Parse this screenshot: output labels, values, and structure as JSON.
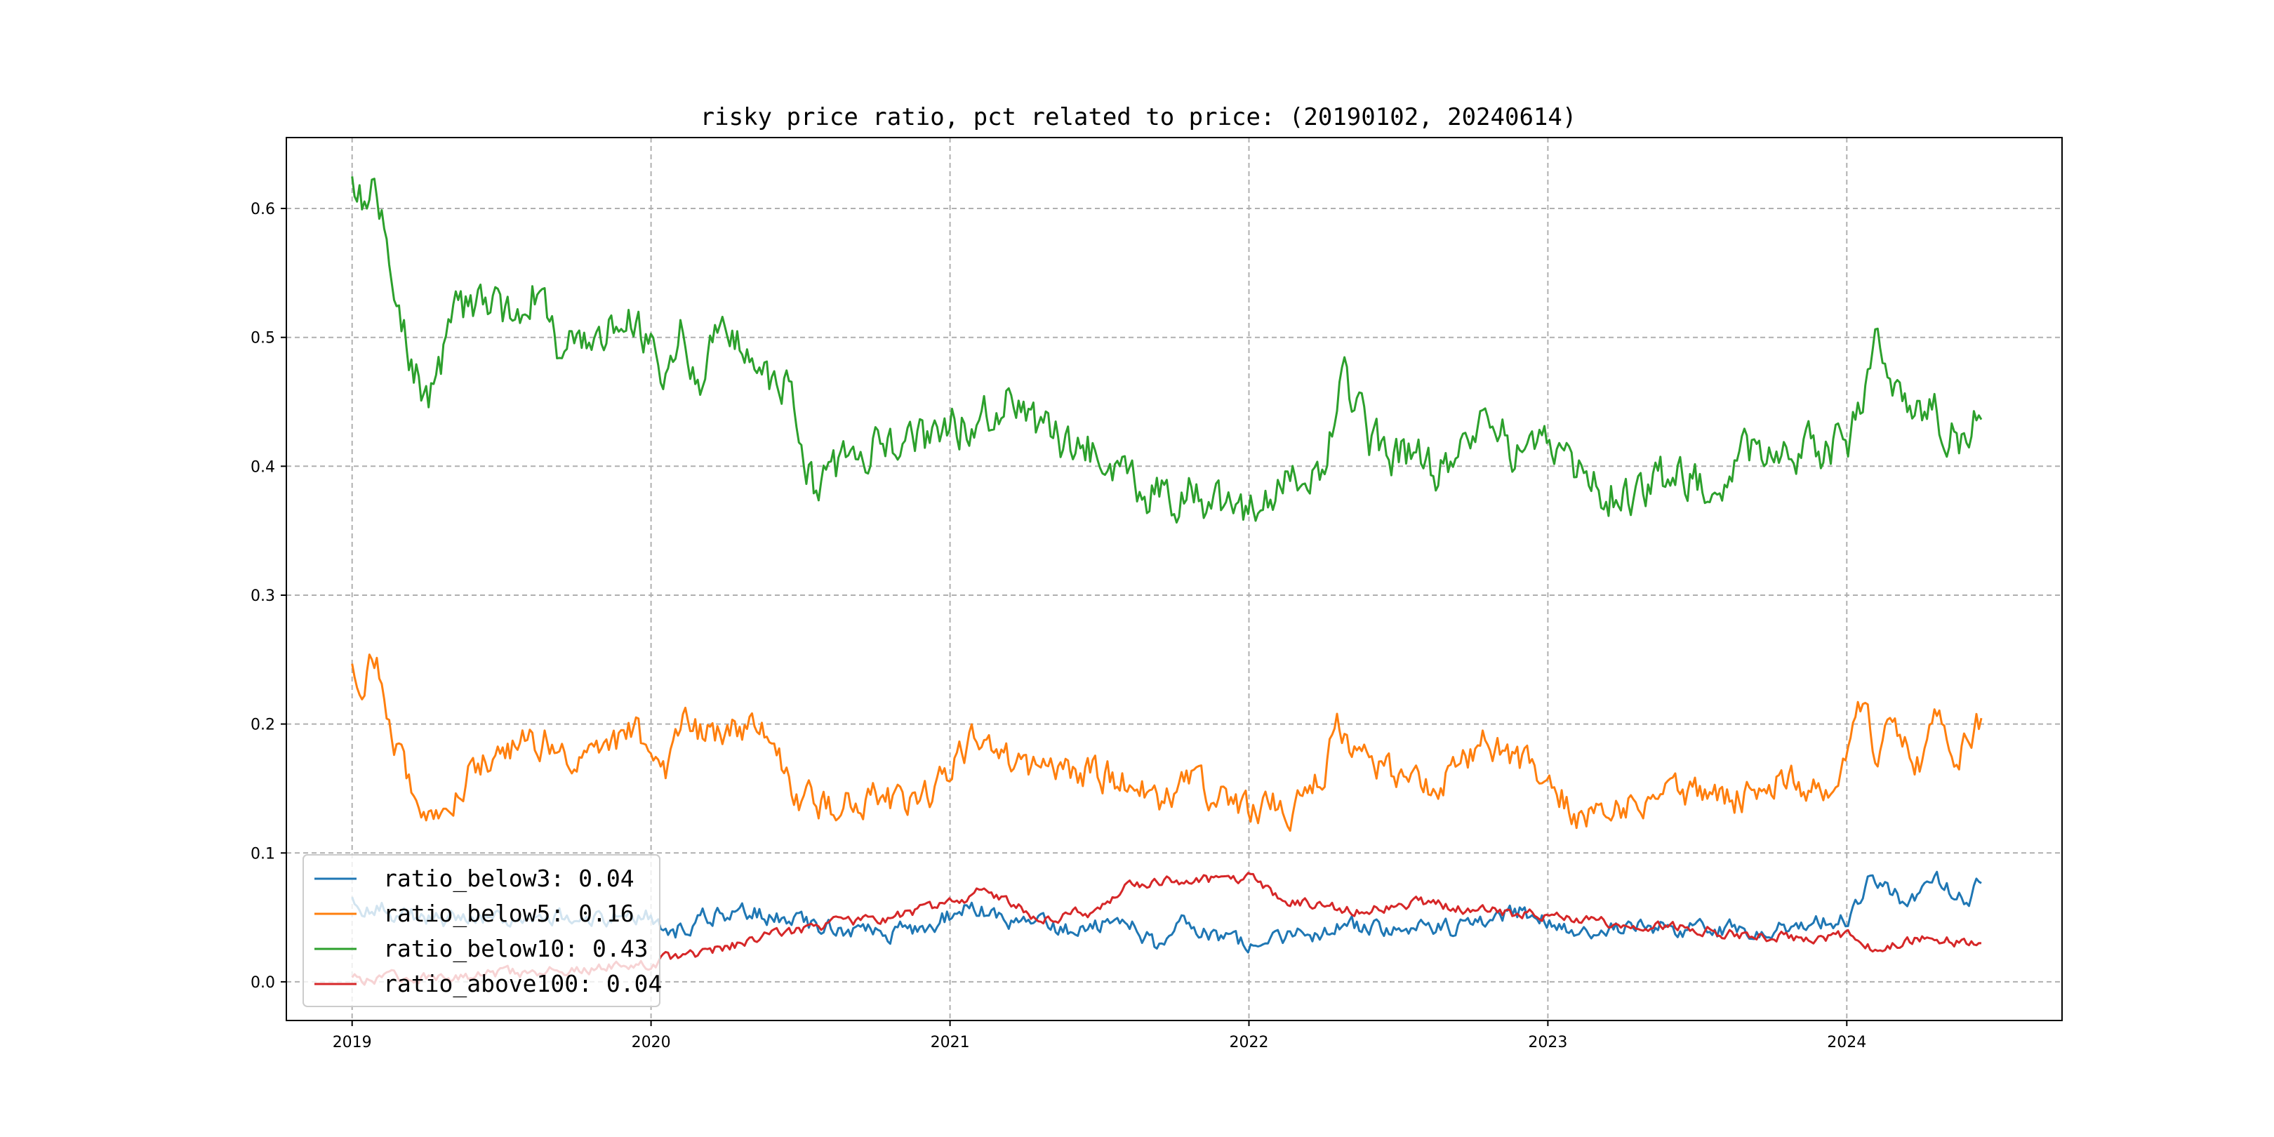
{
  "chart_data": {
    "type": "line",
    "title": "risky price ratio, pct related to price: (20190102, 20240614)",
    "xlabel": "",
    "ylabel": "",
    "x_range": [
      2018.78,
      2024.72
    ],
    "ylim": [
      -0.03,
      0.655
    ],
    "grid": true,
    "x_ticks": [
      {
        "value": 2019,
        "label": "2019"
      },
      {
        "value": 2020,
        "label": "2020"
      },
      {
        "value": 2021,
        "label": "2021"
      },
      {
        "value": 2022,
        "label": "2022"
      },
      {
        "value": 2023,
        "label": "2023"
      },
      {
        "value": 2024,
        "label": "2024"
      }
    ],
    "y_ticks": [
      {
        "value": 0.0,
        "label": "0.0"
      },
      {
        "value": 0.1,
        "label": "0.1"
      },
      {
        "value": 0.2,
        "label": "0.2"
      },
      {
        "value": 0.3,
        "label": "0.3"
      },
      {
        "value": 0.4,
        "label": "0.4"
      },
      {
        "value": 0.5,
        "label": "0.5"
      },
      {
        "value": 0.6,
        "label": "0.6"
      }
    ],
    "legend_position": "lower-left",
    "series": [
      {
        "name": "ratio_below3",
        "legend_label": "ratio_below3: 0.04",
        "color": "#1f77b4",
        "x": [
          2019.0,
          2019.1,
          2019.25,
          2019.4,
          2019.6,
          2019.8,
          2020.0,
          2020.08,
          2020.2,
          2020.35,
          2020.5,
          2020.7,
          2020.9,
          2021.05,
          2021.2,
          2021.4,
          2021.6,
          2021.7,
          2021.8,
          2021.9,
          2022.0,
          2022.15,
          2022.3,
          2022.5,
          2022.7,
          2022.9,
          2023.0,
          2023.2,
          2023.4,
          2023.6,
          2023.8,
          2024.0,
          2024.08,
          2024.2,
          2024.3,
          2024.4,
          2024.45
        ],
        "y": [
          0.06,
          0.057,
          0.047,
          0.048,
          0.05,
          0.047,
          0.05,
          0.04,
          0.052,
          0.055,
          0.045,
          0.037,
          0.04,
          0.058,
          0.048,
          0.04,
          0.05,
          0.025,
          0.048,
          0.035,
          0.028,
          0.033,
          0.045,
          0.04,
          0.042,
          0.055,
          0.045,
          0.04,
          0.043,
          0.04,
          0.042,
          0.05,
          0.08,
          0.06,
          0.08,
          0.062,
          0.076
        ]
      },
      {
        "name": "ratio_below5",
        "legend_label": "ratio_below5: 0.16",
        "color": "#ff7f0e",
        "x": [
          2019.0,
          2019.03,
          2019.08,
          2019.15,
          2019.2,
          2019.3,
          2019.4,
          2019.55,
          2019.65,
          2019.8,
          2019.95,
          2020.05,
          2020.1,
          2020.2,
          2020.3,
          2020.4,
          2020.5,
          2020.6,
          2020.7,
          2020.8,
          2020.9,
          2021.0,
          2021.1,
          2021.2,
          2021.3,
          2021.4,
          2021.5,
          2021.6,
          2021.7,
          2021.8,
          2021.9,
          2022.0,
          2022.1,
          2022.2,
          2022.3,
          2022.4,
          2022.5,
          2022.6,
          2022.7,
          2022.8,
          2022.9,
          2023.0,
          2023.1,
          2023.2,
          2023.3,
          2023.4,
          2023.5,
          2023.6,
          2023.7,
          2023.8,
          2023.9,
          2024.0,
          2024.05,
          2024.1,
          2024.15,
          2024.25,
          2024.3,
          2024.35,
          2024.45
        ],
        "y": [
          0.25,
          0.24,
          0.25,
          0.18,
          0.15,
          0.125,
          0.17,
          0.18,
          0.19,
          0.17,
          0.195,
          0.16,
          0.2,
          0.19,
          0.2,
          0.185,
          0.14,
          0.135,
          0.145,
          0.14,
          0.135,
          0.165,
          0.19,
          0.17,
          0.16,
          0.165,
          0.16,
          0.155,
          0.14,
          0.16,
          0.145,
          0.13,
          0.14,
          0.135,
          0.2,
          0.17,
          0.16,
          0.155,
          0.165,
          0.19,
          0.17,
          0.155,
          0.13,
          0.14,
          0.14,
          0.14,
          0.145,
          0.14,
          0.15,
          0.16,
          0.15,
          0.165,
          0.215,
          0.18,
          0.2,
          0.17,
          0.21,
          0.17,
          0.205
        ]
      },
      {
        "name": "ratio_below10",
        "legend_label": "ratio_below10: 0.43",
        "color": "#2ca02c",
        "x": [
          2019.0,
          2019.05,
          2019.08,
          2019.12,
          2019.18,
          2019.25,
          2019.3,
          2019.35,
          2019.45,
          2019.55,
          2019.6,
          2019.7,
          2019.8,
          2019.95,
          2020.05,
          2020.1,
          2020.15,
          2020.25,
          2020.35,
          2020.45,
          2020.5,
          2020.55,
          2020.65,
          2020.75,
          2020.85,
          2021.0,
          2021.1,
          2021.2,
          2021.3,
          2021.4,
          2021.5,
          2021.6,
          2021.7,
          2021.8,
          2021.9,
          2022.0,
          2022.05,
          2022.15,
          2022.25,
          2022.32,
          2022.4,
          2022.5,
          2022.6,
          2022.7,
          2022.8,
          2022.9,
          2023.0,
          2023.1,
          2023.2,
          2023.3,
          2023.4,
          2023.5,
          2023.6,
          2023.7,
          2023.8,
          2023.9,
          2024.0,
          2024.05,
          2024.1,
          2024.15,
          2024.2,
          2024.28,
          2024.32,
          2024.38,
          2024.45
        ],
        "y": [
          0.62,
          0.6,
          0.61,
          0.56,
          0.5,
          0.45,
          0.48,
          0.52,
          0.52,
          0.51,
          0.54,
          0.49,
          0.5,
          0.51,
          0.46,
          0.5,
          0.46,
          0.51,
          0.47,
          0.46,
          0.42,
          0.38,
          0.4,
          0.42,
          0.41,
          0.43,
          0.44,
          0.45,
          0.42,
          0.42,
          0.41,
          0.39,
          0.375,
          0.38,
          0.37,
          0.36,
          0.38,
          0.4,
          0.4,
          0.47,
          0.42,
          0.41,
          0.4,
          0.4,
          0.43,
          0.41,
          0.415,
          0.39,
          0.38,
          0.38,
          0.39,
          0.39,
          0.4,
          0.41,
          0.42,
          0.41,
          0.42,
          0.44,
          0.52,
          0.48,
          0.44,
          0.45,
          0.43,
          0.42,
          0.445
        ]
      },
      {
        "name": "ratio_above100",
        "legend_label": "ratio_above100: 0.04",
        "color": "#d62728",
        "x": [
          2019.0,
          2019.2,
          2019.4,
          2019.6,
          2019.8,
          2020.0,
          2020.2,
          2020.4,
          2020.6,
          2020.8,
          2021.0,
          2021.1,
          2021.3,
          2021.5,
          2021.6,
          2021.8,
          2021.9,
          2022.0,
          2022.1,
          2022.2,
          2022.4,
          2022.5,
          2022.6,
          2022.8,
          2023.0,
          2023.2,
          2023.4,
          2023.6,
          2023.8,
          2024.0,
          2024.05,
          2024.1,
          2024.2,
          2024.3,
          2024.45
        ],
        "y": [
          0.002,
          0.003,
          0.005,
          0.008,
          0.01,
          0.015,
          0.025,
          0.035,
          0.045,
          0.05,
          0.06,
          0.07,
          0.05,
          0.055,
          0.075,
          0.078,
          0.08,
          0.08,
          0.065,
          0.06,
          0.055,
          0.062,
          0.06,
          0.055,
          0.05,
          0.045,
          0.042,
          0.038,
          0.035,
          0.035,
          0.03,
          0.025,
          0.032,
          0.033,
          0.03
        ]
      }
    ]
  }
}
